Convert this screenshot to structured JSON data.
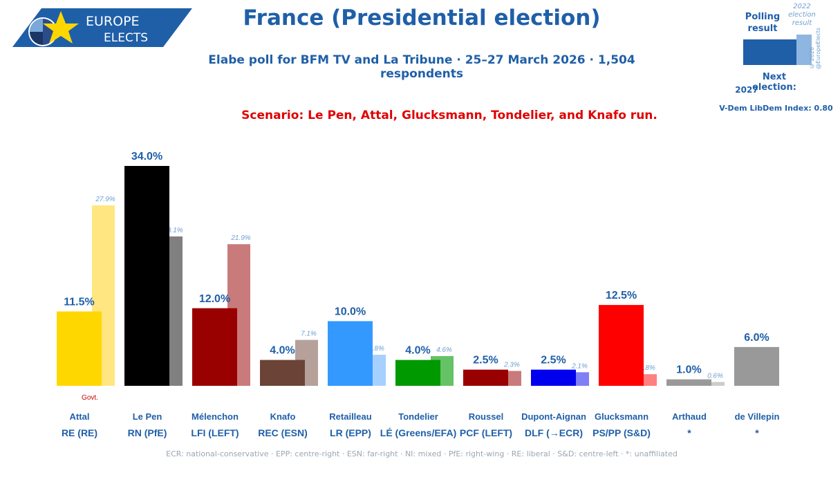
{
  "logo": {
    "line1": "EUROPE",
    "line2": "ELECTS"
  },
  "header": {
    "title": "France (Presidential election)",
    "subtitle": "Elabe poll for BFM TV and La Tribune · 25–27 March 2026 · 1,504 respondents",
    "scenario": "Scenario: Le Pen, Attal, Glucksmann, Tondelier, and Knafo run."
  },
  "legend": {
    "polling_result": "Polling result",
    "previous_result": "2022 election result",
    "copyright": "© 2026 @EuropeElects",
    "next_election_label": "Next election:",
    "next_election_year": "2027",
    "vdem": "V-Dem LibDem Index: 0.80"
  },
  "footer": "ECR: national-conservative · EPP: centre-right · ESN: far-right · NI: mixed · PfE: right-wing · RE: liberal · S&D: centre-left · *: unaffiliated",
  "colors": {
    "brand": "#1f5fa8",
    "accent": "#e00000"
  },
  "chart_data": {
    "type": "bar",
    "ylim": [
      0,
      34
    ],
    "categories": [
      "Attal",
      "Le Pen",
      "Mélenchon",
      "Knafo",
      "Retailleau",
      "Tondelier",
      "Roussel",
      "Dupont-Aignan",
      "Glucksmann",
      "Arthaud",
      "de Villepin"
    ],
    "parties": [
      "RE (RE)",
      "RN (PfE)",
      "LFI (LEFT)",
      "REC (ESN)",
      "LR (EPP)",
      "LÉ (Greens/EFA)",
      "PCF (LEFT)",
      "DLF (→ECR)",
      "PS/PP (S&D)",
      "*",
      "*"
    ],
    "series": [
      {
        "values": [
          11.5,
          34.0,
          12.0,
          4.0,
          10.0,
          4.0,
          2.5,
          2.5,
          12.5,
          1.0,
          6.0
        ],
        "labels": [
          "11.5%",
          "34.0%",
          "12.0%",
          "4.0%",
          "10.0%",
          "4.0%",
          "2.5%",
          "2.5%",
          "12.5%",
          "1.0%",
          "6.0%"
        ]
      },
      {
        "values": [
          27.9,
          23.1,
          21.9,
          7.1,
          4.8,
          4.6,
          2.3,
          2.1,
          1.8,
          0.6,
          null
        ],
        "labels": [
          "27.9%",
          "23.1%",
          "21.9%",
          "7.1%",
          "4.8%",
          "4.6%",
          "2.3%",
          "2.1%",
          "1.8%",
          "0.6%",
          null
        ]
      }
    ],
    "colors": [
      "#ffd700",
      "#000000",
      "#990000",
      "#6b4437",
      "#3399ff",
      "#009900",
      "#990000",
      "#0000ee",
      "#ff0000",
      "#999999",
      "#999999"
    ],
    "prev_colors": [
      "#ffe680",
      "#808080",
      "#c97a7a",
      "#b5a19a",
      "#a6d0ff",
      "#66c266",
      "#c97a7a",
      "#8080f6",
      "#ff8080",
      "#cccccc",
      null
    ],
    "annotations": [
      {
        "category": "Attal",
        "text": "Govt."
      }
    ]
  }
}
